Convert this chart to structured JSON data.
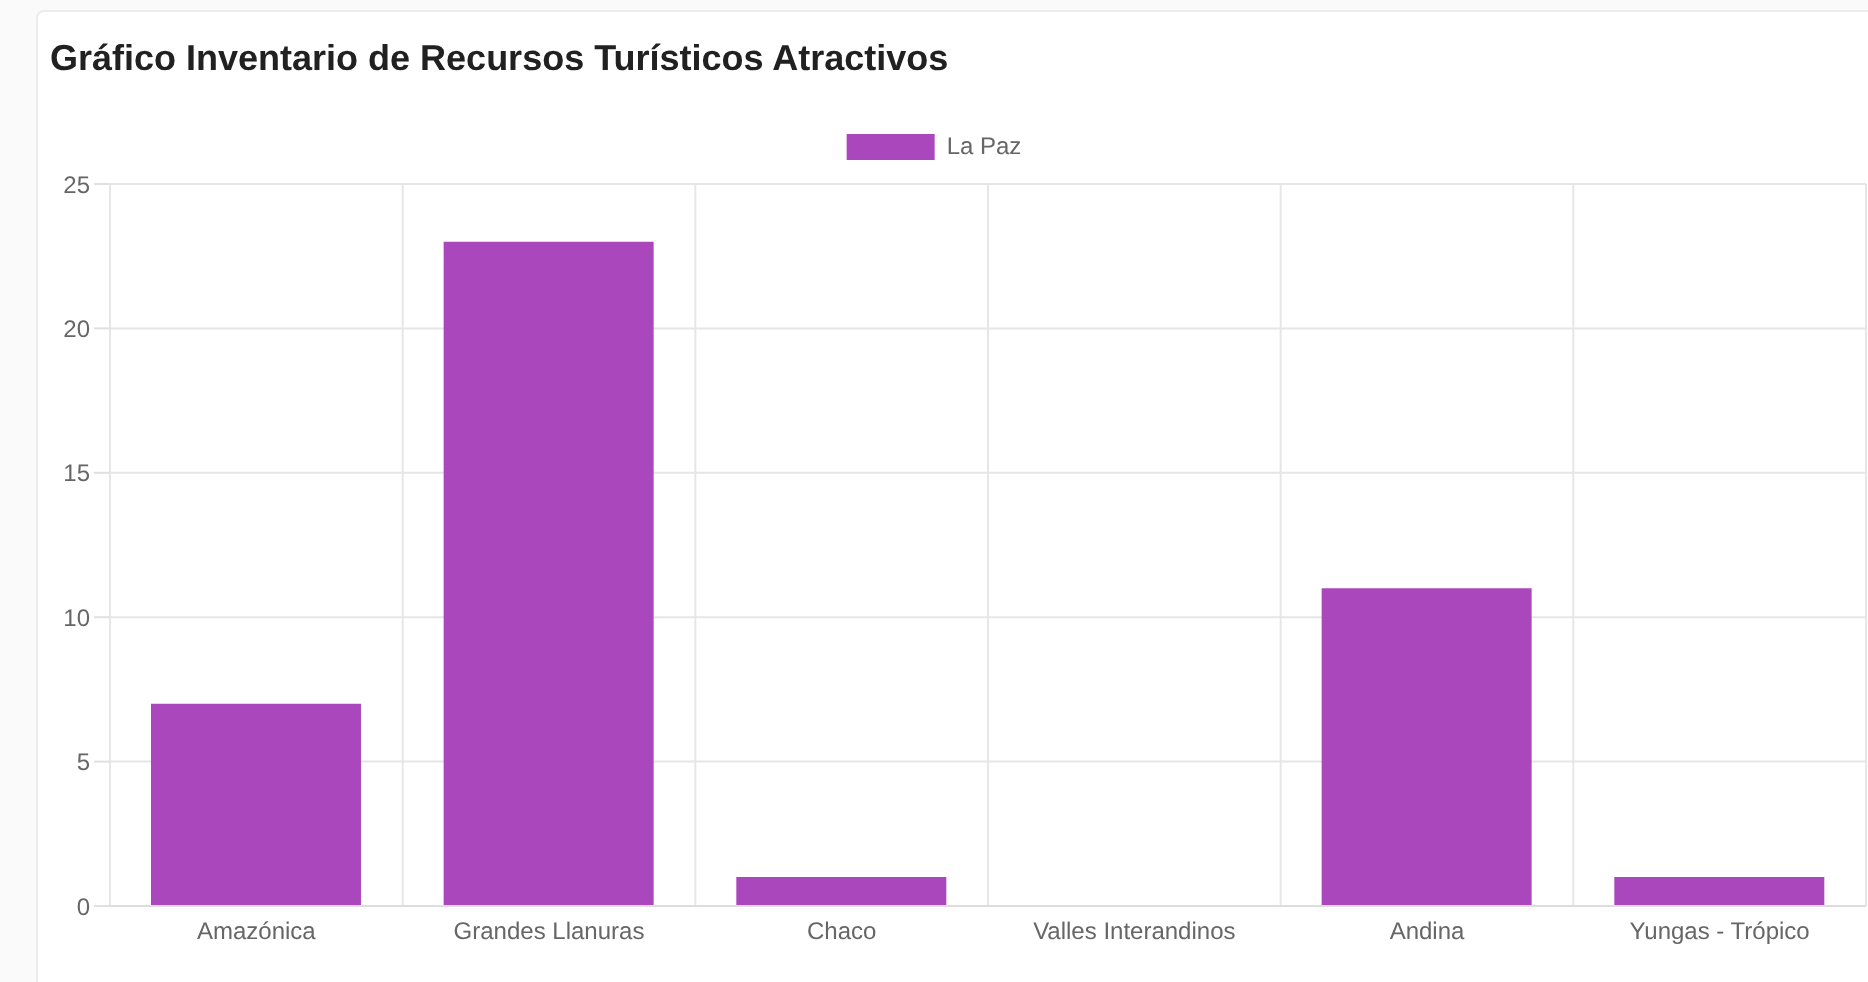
{
  "chart_data": {
    "type": "bar",
    "title": "Gráfico Inventario de Recursos Turísticos Atractivos",
    "categories": [
      "Amazónica",
      "Grandes Llanuras",
      "Chaco",
      "Valles Interandinos",
      "Andina",
      "Yungas - Trópico"
    ],
    "series": [
      {
        "name": "La Paz",
        "color": "#ab47bc",
        "values": [
          7,
          23,
          1,
          0,
          11,
          1
        ]
      }
    ],
    "ylim": [
      0,
      25
    ],
    "yticks": [
      0,
      5,
      10,
      15,
      20,
      25
    ],
    "grid": true,
    "legend": "top"
  }
}
